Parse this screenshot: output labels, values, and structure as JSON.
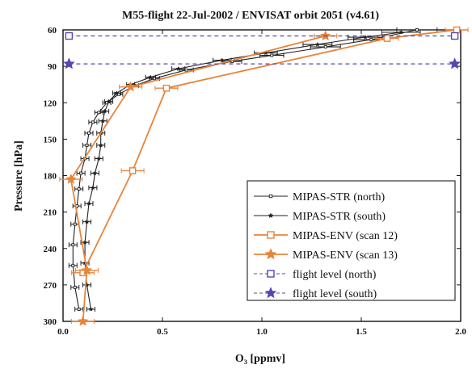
{
  "chart_data": {
    "type": "line",
    "title": "M55-flight 22-Jul-2002 / ENVISAT orbit 2051 (v4.61)",
    "xlabel": "O₃ [ppmv]",
    "ylabel": "Pressure [hPa]",
    "xlim": [
      0.0,
      2.0
    ],
    "ylim": [
      60,
      300
    ],
    "x_ticks": [
      "0.0",
      "0.5",
      "1.0",
      "1.5",
      "2.0"
    ],
    "y_ticks": [
      "60",
      "90",
      "120",
      "150",
      "180",
      "210",
      "240",
      "270",
      "300"
    ],
    "y_ticks_values": [
      60,
      90,
      120,
      150,
      180,
      210,
      240,
      270,
      300
    ],
    "x_ticks_values": [
      0.0,
      0.5,
      1.0,
      1.5,
      2.0
    ],
    "legend_position": "bottom-right",
    "colors": {
      "str_line": "#222222",
      "env": "#e8843a",
      "flight": "#5a45b0"
    },
    "series": [
      {
        "name": "MIPAS-STR (north)",
        "marker": "square",
        "color": "#222222",
        "points": [
          {
            "x": 1.78,
            "y": 60
          },
          {
            "x": 1.55,
            "y": 68
          },
          {
            "x": 1.32,
            "y": 74
          },
          {
            "x": 1.05,
            "y": 81
          },
          {
            "x": 0.85,
            "y": 86
          },
          {
            "x": 0.62,
            "y": 93
          },
          {
            "x": 0.46,
            "y": 100
          },
          {
            "x": 0.36,
            "y": 106
          },
          {
            "x": 0.28,
            "y": 113
          },
          {
            "x": 0.22,
            "y": 120
          },
          {
            "x": 0.18,
            "y": 128
          },
          {
            "x": 0.15,
            "y": 136
          },
          {
            "x": 0.13,
            "y": 145
          },
          {
            "x": 0.12,
            "y": 155
          },
          {
            "x": 0.11,
            "y": 166
          },
          {
            "x": 0.09,
            "y": 178
          },
          {
            "x": 0.08,
            "y": 191
          },
          {
            "x": 0.07,
            "y": 205
          },
          {
            "x": 0.06,
            "y": 220
          },
          {
            "x": 0.05,
            "y": 237
          },
          {
            "x": 0.05,
            "y": 254
          },
          {
            "x": 0.06,
            "y": 272
          },
          {
            "x": 0.08,
            "y": 290
          }
        ]
      },
      {
        "name": "MIPAS-STR (south)",
        "marker": "star",
        "color": "#222222",
        "points": [
          {
            "x": 1.7,
            "y": 62
          },
          {
            "x": 1.52,
            "y": 66
          },
          {
            "x": 1.28,
            "y": 72
          },
          {
            "x": 1.02,
            "y": 79
          },
          {
            "x": 0.8,
            "y": 85
          },
          {
            "x": 0.58,
            "y": 92
          },
          {
            "x": 0.44,
            "y": 99
          },
          {
            "x": 0.34,
            "y": 105
          },
          {
            "x": 0.27,
            "y": 112
          },
          {
            "x": 0.23,
            "y": 119
          },
          {
            "x": 0.21,
            "y": 127
          },
          {
            "x": 0.2,
            "y": 135
          },
          {
            "x": 0.19,
            "y": 145
          },
          {
            "x": 0.19,
            "y": 155
          },
          {
            "x": 0.18,
            "y": 166
          },
          {
            "x": 0.16,
            "y": 178
          },
          {
            "x": 0.15,
            "y": 190
          },
          {
            "x": 0.13,
            "y": 203
          },
          {
            "x": 0.12,
            "y": 218
          },
          {
            "x": 0.11,
            "y": 235
          },
          {
            "x": 0.11,
            "y": 252
          },
          {
            "x": 0.12,
            "y": 270
          },
          {
            "x": 0.14,
            "y": 290
          }
        ]
      },
      {
        "name": "MIPAS-ENV (scan 12)",
        "marker": "open-square",
        "color": "#e8843a",
        "points": [
          {
            "x": 1.98,
            "y": 60
          },
          {
            "x": 1.63,
            "y": 67
          },
          {
            "x": 0.52,
            "y": 108
          },
          {
            "x": 0.35,
            "y": 176
          },
          {
            "x": 0.1,
            "y": 260
          }
        ]
      },
      {
        "name": "MIPAS-ENV (scan 13)",
        "marker": "filled-star",
        "color": "#e8843a",
        "points": [
          {
            "x": 1.32,
            "y": 65
          },
          {
            "x": 0.34,
            "y": 107
          },
          {
            "x": 0.04,
            "y": 183
          },
          {
            "x": 0.12,
            "y": 258
          },
          {
            "x": 0.1,
            "y": 300
          }
        ]
      },
      {
        "name": "flight level (north)",
        "marker": "open-square",
        "color": "#5a45b0",
        "dashed": true,
        "points": [
          {
            "x": 0.03,
            "y": 65
          },
          {
            "x": 1.97,
            "y": 65
          }
        ]
      },
      {
        "name": "flight level (south)",
        "marker": "filled-star",
        "color": "#5a45b0",
        "dashed": true,
        "points": [
          {
            "x": 0.03,
            "y": 88
          },
          {
            "x": 1.97,
            "y": 88
          }
        ]
      }
    ]
  }
}
